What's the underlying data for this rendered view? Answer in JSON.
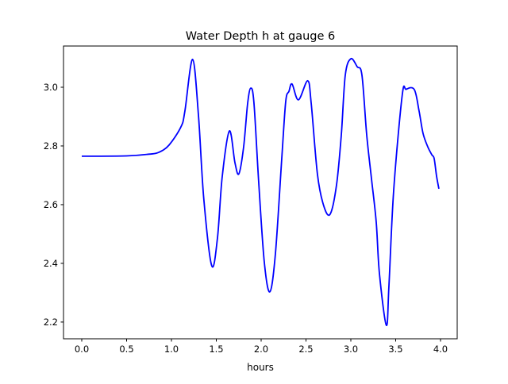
{
  "chart_data": {
    "type": "line",
    "title": "Water Depth h at gauge 6",
    "xlabel": "hours",
    "ylabel": "",
    "xlim": [
      -0.2035,
      4.186
    ],
    "ylim": [
      2.143,
      3.1405
    ],
    "xticks": [
      0.0,
      0.5,
      1.0,
      1.5,
      2.0,
      2.5,
      3.0,
      3.5,
      4.0
    ],
    "xtick_labels": [
      "0.0",
      "0.5",
      "1.0",
      "1.5",
      "2.0",
      "2.5",
      "3.0",
      "3.5",
      "4.0"
    ],
    "yticks": [
      2.2,
      2.4,
      2.6,
      2.8,
      3.0
    ],
    "ytick_labels": [
      "2.2",
      "2.4",
      "2.6",
      "2.8",
      "3.0"
    ],
    "grid": false,
    "series": [
      {
        "name": "h",
        "color": "#0000ff",
        "x": [
          0,
          0.5,
          0.75,
          0.858,
          0.973,
          1.106,
          1.15,
          1.236,
          1.301,
          1.36,
          1.449,
          1.513,
          1.566,
          1.646,
          1.708,
          1.752,
          1.805,
          1.85,
          1.885,
          1.92,
          1.973,
          2.035,
          2.097,
          2.159,
          2.23,
          2.274,
          2.31,
          2.345,
          2.416,
          2.519,
          2.558,
          2.628,
          2.699,
          2.77,
          2.841,
          2.894,
          2.938,
          3.0,
          3.071,
          3.124,
          3.177,
          3.23,
          3.283,
          3.319,
          3.396,
          3.425,
          3.478,
          3.573,
          3.617,
          3.708,
          3.761,
          3.805,
          3.858,
          3.903,
          3.929,
          3.956,
          3.982
        ],
        "y": [
          2.765,
          2.766,
          2.772,
          2.778,
          2.803,
          2.865,
          2.919,
          3.095,
          2.905,
          2.622,
          2.392,
          2.486,
          2.695,
          2.851,
          2.743,
          2.705,
          2.797,
          2.946,
          2.997,
          2.946,
          2.676,
          2.405,
          2.303,
          2.432,
          2.757,
          2.951,
          2.986,
          3.011,
          2.957,
          3.022,
          2.946,
          2.703,
          2.595,
          2.568,
          2.668,
          2.838,
          3.041,
          3.097,
          3.07,
          3.041,
          2.838,
          2.689,
          2.541,
          2.365,
          2.189,
          2.324,
          2.649,
          2.973,
          2.993,
          2.992,
          2.919,
          2.843,
          2.797,
          2.77,
          2.757,
          2.697,
          2.654
        ]
      }
    ]
  }
}
